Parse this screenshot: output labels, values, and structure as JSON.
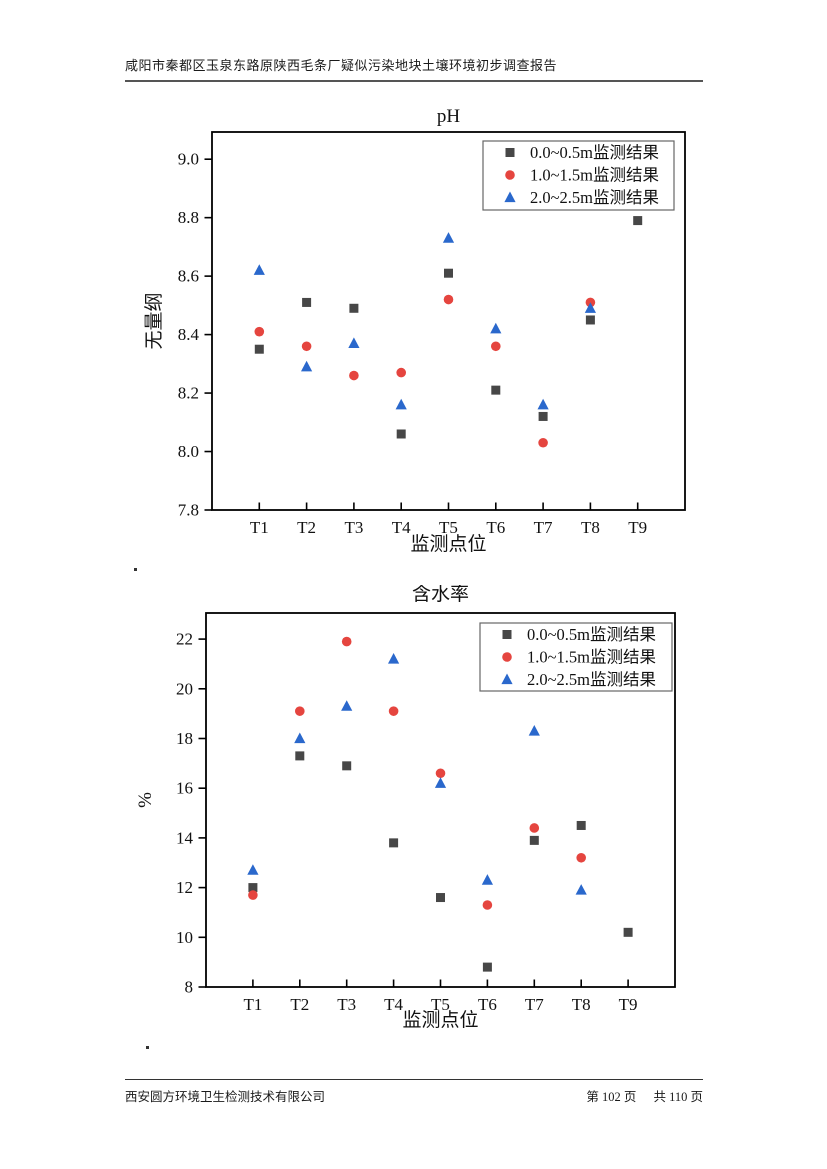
{
  "page": {
    "header": "咸阳市秦都区玉泉东路原陕西毛条厂疑似污染地块土壤环境初步调查报告",
    "footer_left": "西安圆方环境卫生检测技术有限公司",
    "footer_page_label_1": "第 102 页",
    "footer_page_label_2": "共 110 页",
    "stray_marks": [
      ".",
      "."
    ]
  },
  "colors": {
    "series_0_0_0_5m": "#474747",
    "series_1_0_1_5m": "#e5453f",
    "series_2_0_2_5m": "#2a68cc",
    "axis": "#000000"
  },
  "chart_data": [
    {
      "type": "scatter",
      "title": "pH",
      "xlabel": "监测点位",
      "ylabel": "无量纲",
      "categories": [
        "T1",
        "T2",
        "T3",
        "T4",
        "T5",
        "T6",
        "T7",
        "T8",
        "T9"
      ],
      "ylim": [
        7.8,
        9.093
      ],
      "yticks": [
        "7.8",
        "8.0",
        "8.2",
        "8.4",
        "8.6",
        "8.8",
        "9.0"
      ],
      "grid": false,
      "legend_position": "top-right-inside",
      "series": [
        {
          "name": "0.0~0.5m监测结果",
          "marker": "square",
          "color": "#474747",
          "values": [
            8.35,
            8.51,
            8.49,
            8.06,
            8.61,
            8.21,
            8.12,
            8.45,
            8.79
          ]
        },
        {
          "name": "1.0~1.5m监测结果",
          "marker": "circle",
          "color": "#e5453f",
          "values": [
            8.41,
            8.36,
            8.26,
            8.27,
            8.52,
            8.36,
            8.03,
            8.51,
            null
          ]
        },
        {
          "name": "2.0~2.5m监测结果",
          "marker": "triangle",
          "color": "#2a68cc",
          "values": [
            8.62,
            8.29,
            8.37,
            8.16,
            8.73,
            8.42,
            8.16,
            8.49,
            null
          ]
        }
      ]
    },
    {
      "type": "scatter",
      "title": "含水率",
      "xlabel": "监测点位",
      "ylabel": "%",
      "categories": [
        "T1",
        "T2",
        "T3",
        "T4",
        "T5",
        "T6",
        "T7",
        "T8",
        "T9"
      ],
      "ylim": [
        8,
        23.05
      ],
      "yticks": [
        "8",
        "10",
        "12",
        "14",
        "16",
        "18",
        "20",
        "22"
      ],
      "grid": false,
      "legend_position": "top-right-inside",
      "series": [
        {
          "name": "0.0~0.5m监测结果",
          "marker": "square",
          "color": "#474747",
          "values": [
            12.0,
            17.3,
            16.9,
            13.8,
            11.6,
            8.8,
            13.9,
            14.5,
            10.2
          ]
        },
        {
          "name": "1.0~1.5m监测结果",
          "marker": "circle",
          "color": "#e5453f",
          "values": [
            11.7,
            19.1,
            21.9,
            19.1,
            16.6,
            11.3,
            14.4,
            13.2,
            null
          ]
        },
        {
          "name": "2.0~2.5m监测结果",
          "marker": "triangle",
          "color": "#2a68cc",
          "values": [
            12.7,
            18.0,
            19.3,
            21.2,
            16.2,
            12.3,
            18.3,
            11.9,
            null
          ]
        }
      ]
    }
  ]
}
